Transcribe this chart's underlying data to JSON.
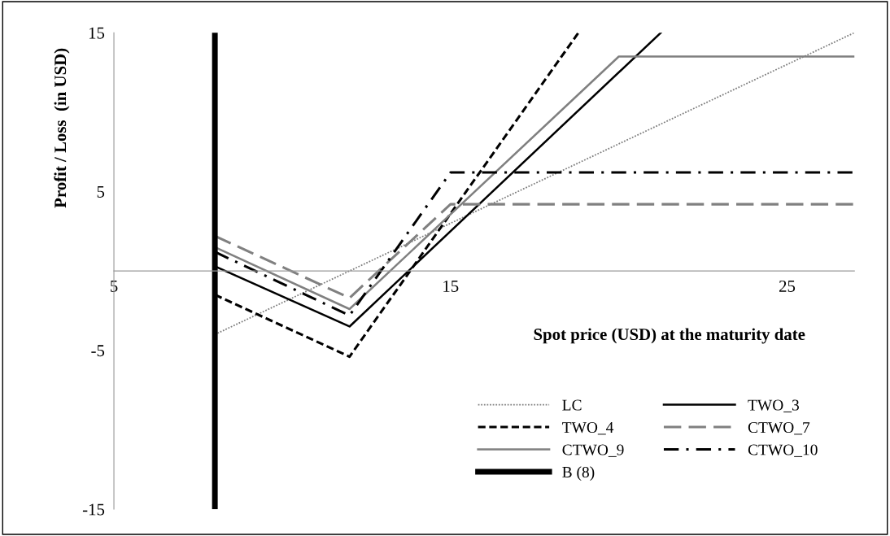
{
  "chart_data": {
    "type": "line",
    "xlabel": "Spot price (USD) at the maturity date",
    "ylabel": "Profit / Loss  (in USD)",
    "xlim": [
      5,
      27
    ],
    "xticks": [
      5,
      15,
      25
    ],
    "ylim": [
      -15,
      15
    ],
    "yticks": [
      -15,
      -5,
      5,
      15
    ],
    "grid": false,
    "legend": "bottom right",
    "marker": "none",
    "series": [
      {
        "name": "LC",
        "color": "#808080",
        "line_style": "dotted",
        "x": [
          8,
          27
        ],
        "values": [
          -4.0,
          15
        ]
      },
      {
        "name": "TWO_3",
        "color": "#000000",
        "line_style": "solid",
        "x": [
          8,
          12,
          21.25
        ],
        "values": [
          0.3,
          -3.5,
          15
        ]
      },
      {
        "name": "TWO_4",
        "color": "#000000",
        "line_style": "dashed",
        "x": [
          8,
          12,
          18.8
        ],
        "values": [
          -1.5,
          -5.4,
          15
        ]
      },
      {
        "name": "CTWO_7",
        "color": "#808080",
        "line_style": "longdashed",
        "x": [
          8,
          12,
          15,
          27
        ],
        "values": [
          2.2,
          -1.7,
          4.2,
          4.2
        ]
      },
      {
        "name": "CTWO_9",
        "color": "#808080",
        "line_style": "solid",
        "x": [
          8,
          12,
          20,
          27
        ],
        "values": [
          1.5,
          -2.4,
          13.5,
          13.5
        ]
      },
      {
        "name": "CTWO_10",
        "color": "#000000",
        "line_style": "dashdot",
        "x": [
          8,
          12,
          15,
          27
        ],
        "values": [
          1.2,
          -2.8,
          6.2,
          6.2
        ]
      },
      {
        "name": "B (8)",
        "color": "#000000",
        "line_style": "solid",
        "x": [
          8,
          8
        ],
        "values": [
          -15,
          15
        ]
      }
    ]
  }
}
